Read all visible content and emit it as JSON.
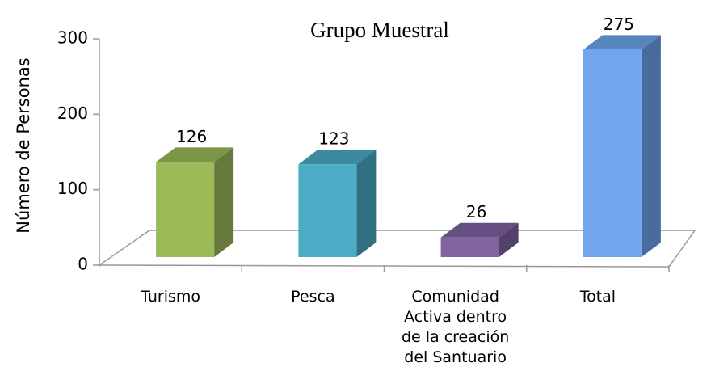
{
  "chart_data": {
    "type": "bar3d",
    "title": "Grupo  Muestral",
    "ylabel": "Número de Personas",
    "categories": [
      "Turismo",
      "Pesca",
      "Comunidad Activa dentro de la creación del Santuario",
      "Total"
    ],
    "values": [
      126,
      123,
      26,
      275
    ],
    "colors": [
      "#9bbb59",
      "#4bacc6",
      "#8064a2",
      "#6fa6ee"
    ],
    "ylim": [
      0,
      300
    ],
    "yticks": [
      0,
      100,
      200,
      300
    ]
  }
}
